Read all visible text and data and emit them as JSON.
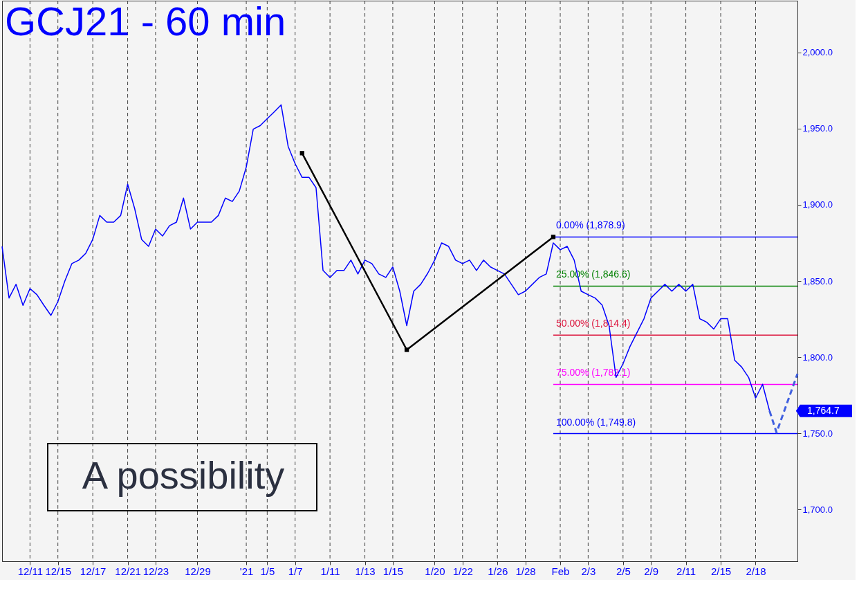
{
  "chart_data": {
    "type": "line",
    "title": "GCJ21 - 60 min",
    "categories": [
      null,
      null,
      null,
      null,
      "12/11",
      null,
      null,
      null,
      "12/15",
      null,
      null,
      null,
      null,
      "12/17",
      null,
      null,
      null,
      null,
      "12/21",
      null,
      null,
      null,
      "12/23",
      null,
      null,
      null,
      null,
      null,
      "12/29",
      null,
      null,
      null,
      null,
      null,
      null,
      "'21",
      null,
      null,
      "1/5",
      null,
      null,
      null,
      "1/7",
      null,
      null,
      null,
      null,
      "1/11",
      null,
      null,
      null,
      null,
      "1/13",
      null,
      null,
      null,
      "1/15",
      null,
      null,
      null,
      null,
      null,
      "1/20",
      null,
      null,
      null,
      "1/22",
      null,
      null,
      null,
      null,
      "1/26",
      null,
      null,
      null,
      "1/28",
      null,
      null,
      null,
      null,
      "Feb",
      null,
      null,
      null,
      "2/3",
      null,
      null,
      null,
      null,
      "2/5",
      null,
      null,
      null,
      "2/9",
      null,
      null,
      null,
      null,
      "2/11",
      null,
      null,
      null,
      null,
      "2/15",
      null,
      null,
      null,
      null,
      "2/18",
      null,
      null,
      null,
      null,
      null,
      null
    ],
    "ylim": [
      1666,
      2034
    ],
    "yticks": [
      {
        "value": 1700,
        "label": "1,700.0"
      },
      {
        "value": 1750,
        "label": "1,750.0"
      },
      {
        "value": 1800,
        "label": "1,800.0"
      },
      {
        "value": 1850,
        "label": "1,850.0"
      },
      {
        "value": 1900,
        "label": "1,900.0"
      },
      {
        "value": 1950,
        "label": "1,950.0"
      },
      {
        "value": 2000,
        "label": "2,000.0"
      }
    ],
    "grid": "x",
    "series": [
      {
        "color": "#0000ff",
        "marker": "none",
        "line_style": "solid",
        "values": [
          1872.7,
          1838.8,
          1847.8,
          1834,
          1845,
          1841,
          1834,
          1827.4,
          1836.5,
          1850,
          1861.4,
          1863.7,
          1868.2,
          1877.3,
          1893,
          1888.6,
          1888.6,
          1893,
          1913.5,
          1897.6,
          1877.3,
          1872.7,
          1884.1,
          1879.5,
          1886.3,
          1888.6,
          1904.4,
          1884.1,
          1888.6,
          1888.6,
          1888.6,
          1893,
          1904.4,
          1902.2,
          1909,
          1924.8,
          1949.7,
          1952,
          1956.5,
          1961,
          1965.6,
          1938.4,
          1927,
          1918,
          1918,
          1911.2,
          1856.9,
          1852.3,
          1856.9,
          1856.9,
          1863.7,
          1854.6,
          1863.7,
          1861.4,
          1854.6,
          1852.3,
          1859.2,
          1843.3,
          1820.7,
          1843.3,
          1847.8,
          1855,
          1863.7,
          1875,
          1872.7,
          1863.7,
          1861.4,
          1863.7,
          1856.9,
          1863.7,
          1859.2,
          1856.9,
          1854.6,
          1847.8,
          1841,
          1843.3,
          1847.8,
          1852.3,
          1854.6,
          1875,
          1870.5,
          1872.7,
          1863.7,
          1843.3,
          1841,
          1838.8,
          1834.2,
          1820.7,
          1786.7,
          1795.7,
          1807,
          1816.1,
          1825.2,
          1838.8,
          1843.3,
          1847.8,
          1843.3,
          1847.8,
          1843.3,
          1847.8,
          1825.2,
          1822.9,
          1818.4,
          1825.2,
          1825.2,
          1798,
          1793.5,
          1786.7,
          1773.1,
          1782.2,
          1764.7,
          null,
          null,
          null,
          null
        ]
      },
      {
        "color": "#000000",
        "marker": "square",
        "line_style": "solid",
        "values": [
          null,
          null,
          null,
          null,
          null,
          null,
          null,
          null,
          null,
          null,
          null,
          null,
          null,
          null,
          null,
          null,
          null,
          null,
          null,
          null,
          null,
          null,
          null,
          null,
          null,
          null,
          null,
          null,
          null,
          null,
          null,
          null,
          null,
          null,
          null,
          null,
          null,
          null,
          null,
          null,
          null,
          null,
          null,
          1933.9,
          null,
          null,
          null,
          null,
          null,
          null,
          null,
          null,
          null,
          null,
          null,
          null,
          null,
          null,
          1804.8,
          null,
          null,
          null,
          null,
          null,
          null,
          null,
          null,
          null,
          null,
          null,
          null,
          null,
          null,
          null,
          null,
          null,
          null,
          null,
          null,
          1878.9,
          null,
          null,
          null,
          null,
          null,
          null,
          null,
          null,
          null,
          null,
          null,
          null,
          null,
          null,
          null,
          null,
          null,
          null,
          null,
          null,
          null,
          null,
          null,
          null,
          null,
          null,
          null,
          null,
          null,
          null,
          null,
          null,
          null,
          null,
          null
        ]
      },
      {
        "color": "#4060e0",
        "marker": "none",
        "line_style": "dashed",
        "values": [
          null,
          null,
          null,
          null,
          null,
          null,
          null,
          null,
          null,
          null,
          null,
          null,
          null,
          null,
          null,
          null,
          null,
          null,
          null,
          null,
          null,
          null,
          null,
          null,
          null,
          null,
          null,
          null,
          null,
          null,
          null,
          null,
          null,
          null,
          null,
          null,
          null,
          null,
          null,
          null,
          null,
          null,
          null,
          null,
          null,
          null,
          null,
          null,
          null,
          null,
          null,
          null,
          null,
          null,
          null,
          null,
          null,
          null,
          null,
          null,
          null,
          null,
          null,
          null,
          null,
          null,
          null,
          null,
          null,
          null,
          null,
          null,
          null,
          null,
          null,
          null,
          null,
          null,
          null,
          null,
          null,
          null,
          null,
          null,
          null,
          null,
          null,
          null,
          null,
          null,
          null,
          null,
          null,
          null,
          null,
          null,
          null,
          null,
          null,
          null,
          null,
          null,
          null,
          null,
          null,
          null,
          null,
          null,
          null,
          null,
          1764.7,
          1750.5,
          null,
          null,
          1789
        ]
      }
    ],
    "ref_lines": [
      {
        "axis": "y",
        "value": 1878.9,
        "label": "0.00% (1,878.9)",
        "color": "#0000ff"
      },
      {
        "axis": "y",
        "value": 1846.6,
        "label": "25.00% (1,846.6)",
        "color": "#008000"
      },
      {
        "axis": "y",
        "value": 1814.4,
        "label": "50.00% (1,814.4)",
        "color": "#dc143c"
      },
      {
        "axis": "y",
        "value": 1782.1,
        "label": "75.00% (1,782.1)",
        "color": "#ff00ff"
      },
      {
        "axis": "y",
        "value": 1749.8,
        "label": "100.00% (1,749.8)",
        "color": "#0000ff"
      }
    ],
    "annotations": [
      "1,764.7",
      "A possibility"
    ]
  }
}
